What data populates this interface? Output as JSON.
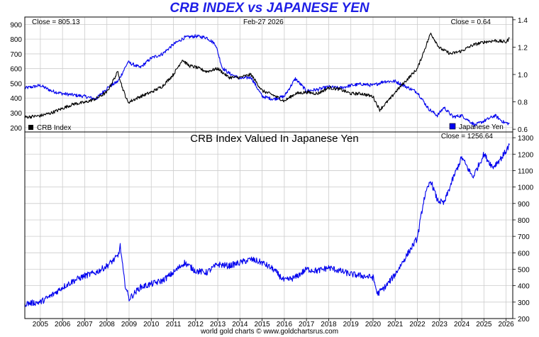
{
  "title": "CRB INDEX vs JAPANESE YEN",
  "footer": "world gold charts © www.goldchartsrus.com",
  "colors": {
    "crb": "#000000",
    "yen": "#0000ee",
    "grid": "#cccccc",
    "title": "#1e1ee6"
  },
  "chart_data": [
    {
      "type": "line",
      "title": "",
      "date_label": "Feb-27  2026",
      "left_close": "Close = 805.13",
      "right_close": "Close = 0.64",
      "left_axis": {
        "ticks": [
          200,
          300,
          400,
          500,
          600,
          700,
          800,
          900
        ],
        "range": [
          170,
          950
        ]
      },
      "right_axis": {
        "ticks": [
          "0.6",
          "0.8",
          "1.0",
          "1.2",
          "1.4"
        ],
        "values": [
          0.6,
          0.8,
          1.0,
          1.2,
          1.4
        ],
        "range": [
          0.58,
          1.42
        ]
      },
      "grid": true,
      "legend": "bottom",
      "series": [
        {
          "name": "CRB Index",
          "axis": "left",
          "color": "#000000",
          "points": [
            [
              2004.3,
              270
            ],
            [
              2005.0,
              280
            ],
            [
              2005.5,
              300
            ],
            [
              2006.0,
              330
            ],
            [
              2006.5,
              360
            ],
            [
              2007.0,
              370
            ],
            [
              2007.5,
              395
            ],
            [
              2008.0,
              440
            ],
            [
              2008.5,
              580
            ],
            [
              2008.7,
              470
            ],
            [
              2008.95,
              370
            ],
            [
              2009.5,
              410
            ],
            [
              2010.0,
              440
            ],
            [
              2010.5,
              480
            ],
            [
              2011.0,
              560
            ],
            [
              2011.4,
              660
            ],
            [
              2011.7,
              620
            ],
            [
              2012.0,
              610
            ],
            [
              2012.5,
              580
            ],
            [
              2013.0,
              600
            ],
            [
              2013.5,
              540
            ],
            [
              2014.0,
              540
            ],
            [
              2014.5,
              560
            ],
            [
              2015.0,
              450
            ],
            [
              2015.5,
              420
            ],
            [
              2016.0,
              380
            ],
            [
              2016.5,
              430
            ],
            [
              2017.0,
              440
            ],
            [
              2017.5,
              430
            ],
            [
              2018.0,
              470
            ],
            [
              2018.5,
              460
            ],
            [
              2019.0,
              430
            ],
            [
              2019.5,
              430
            ],
            [
              2020.0,
              410
            ],
            [
              2020.3,
              320
            ],
            [
              2020.8,
              400
            ],
            [
              2021.0,
              440
            ],
            [
              2021.5,
              520
            ],
            [
              2022.0,
              600
            ],
            [
              2022.3,
              720
            ],
            [
              2022.6,
              840
            ],
            [
              2023.0,
              740
            ],
            [
              2023.5,
              700
            ],
            [
              2024.0,
              720
            ],
            [
              2024.5,
              760
            ],
            [
              2025.0,
              780
            ],
            [
              2025.5,
              790
            ],
            [
              2026.0,
              780
            ],
            [
              2026.15,
              805
            ]
          ]
        },
        {
          "name": "Japanese Yen",
          "axis": "right",
          "color": "#0000ee",
          "points": [
            [
              2004.3,
              0.9
            ],
            [
              2005.0,
              0.92
            ],
            [
              2005.5,
              0.88
            ],
            [
              2006.0,
              0.86
            ],
            [
              2006.5,
              0.85
            ],
            [
              2007.0,
              0.84
            ],
            [
              2007.5,
              0.82
            ],
            [
              2008.0,
              0.9
            ],
            [
              2008.5,
              0.95
            ],
            [
              2008.95,
              1.09
            ],
            [
              2009.5,
              1.05
            ],
            [
              2010.0,
              1.12
            ],
            [
              2010.5,
              1.15
            ],
            [
              2011.0,
              1.22
            ],
            [
              2011.5,
              1.27
            ],
            [
              2012.0,
              1.28
            ],
            [
              2012.5,
              1.27
            ],
            [
              2012.9,
              1.22
            ],
            [
              2013.2,
              1.05
            ],
            [
              2013.5,
              1.01
            ],
            [
              2014.0,
              0.97
            ],
            [
              2014.5,
              0.98
            ],
            [
              2015.0,
              0.84
            ],
            [
              2015.5,
              0.82
            ],
            [
              2016.0,
              0.84
            ],
            [
              2016.5,
              0.97
            ],
            [
              2017.0,
              0.88
            ],
            [
              2017.5,
              0.89
            ],
            [
              2018.0,
              0.91
            ],
            [
              2018.5,
              0.9
            ],
            [
              2019.0,
              0.92
            ],
            [
              2019.5,
              0.93
            ],
            [
              2020.0,
              0.92
            ],
            [
              2020.5,
              0.95
            ],
            [
              2021.0,
              0.95
            ],
            [
              2021.5,
              0.91
            ],
            [
              2022.0,
              0.87
            ],
            [
              2022.5,
              0.75
            ],
            [
              2022.9,
              0.7
            ],
            [
              2023.2,
              0.76
            ],
            [
              2023.6,
              0.69
            ],
            [
              2024.0,
              0.7
            ],
            [
              2024.6,
              0.63
            ],
            [
              2025.0,
              0.66
            ],
            [
              2025.5,
              0.7
            ],
            [
              2025.9,
              0.65
            ],
            [
              2026.15,
              0.64
            ]
          ]
        }
      ]
    },
    {
      "type": "line",
      "title": "CRB Index Valued In Japanese Yen",
      "right_close": "Close = 1256.64",
      "right_axis": {
        "ticks": [
          200,
          300,
          400,
          500,
          600,
          700,
          800,
          900,
          1000,
          1100,
          1200,
          1300
        ],
        "range": [
          200,
          1335
        ]
      },
      "x_axis": {
        "ticks": [
          2005,
          2006,
          2007,
          2008,
          2009,
          2010,
          2011,
          2012,
          2013,
          2014,
          2015,
          2016,
          2017,
          2018,
          2019,
          2020,
          2021,
          2022,
          2023,
          2024,
          2025,
          2026
        ],
        "range": [
          2004.3,
          2026.3
        ]
      },
      "grid": true,
      "series": [
        {
          "name": "",
          "axis": "right",
          "color": "#0000ee",
          "points": [
            [
              2004.3,
              290
            ],
            [
              2005.0,
              300
            ],
            [
              2005.5,
              340
            ],
            [
              2006.0,
              390
            ],
            [
              2006.5,
              430
            ],
            [
              2007.0,
              460
            ],
            [
              2007.5,
              480
            ],
            [
              2008.0,
              520
            ],
            [
              2008.5,
              580
            ],
            [
              2008.6,
              640
            ],
            [
              2008.8,
              420
            ],
            [
              2009.0,
              320
            ],
            [
              2009.5,
              390
            ],
            [
              2010.0,
              410
            ],
            [
              2010.5,
              430
            ],
            [
              2011.0,
              480
            ],
            [
              2011.5,
              540
            ],
            [
              2012.0,
              490
            ],
            [
              2012.5,
              480
            ],
            [
              2013.0,
              530
            ],
            [
              2013.5,
              520
            ],
            [
              2014.0,
              540
            ],
            [
              2014.5,
              560
            ],
            [
              2015.0,
              540
            ],
            [
              2015.5,
              500
            ],
            [
              2016.0,
              430
            ],
            [
              2016.5,
              450
            ],
            [
              2017.0,
              500
            ],
            [
              2017.5,
              490
            ],
            [
              2018.0,
              510
            ],
            [
              2018.5,
              490
            ],
            [
              2019.0,
              470
            ],
            [
              2019.5,
              460
            ],
            [
              2020.0,
              450
            ],
            [
              2020.2,
              350
            ],
            [
              2020.6,
              400
            ],
            [
              2021.0,
              470
            ],
            [
              2021.5,
              580
            ],
            [
              2022.0,
              690
            ],
            [
              2022.3,
              930
            ],
            [
              2022.6,
              1040
            ],
            [
              2022.9,
              920
            ],
            [
              2023.2,
              900
            ],
            [
              2023.6,
              1050
            ],
            [
              2024.0,
              1180
            ],
            [
              2024.5,
              1060
            ],
            [
              2025.0,
              1200
            ],
            [
              2025.4,
              1120
            ],
            [
              2025.8,
              1180
            ],
            [
              2026.0,
              1220
            ],
            [
              2026.15,
              1257
            ]
          ]
        }
      ]
    }
  ]
}
